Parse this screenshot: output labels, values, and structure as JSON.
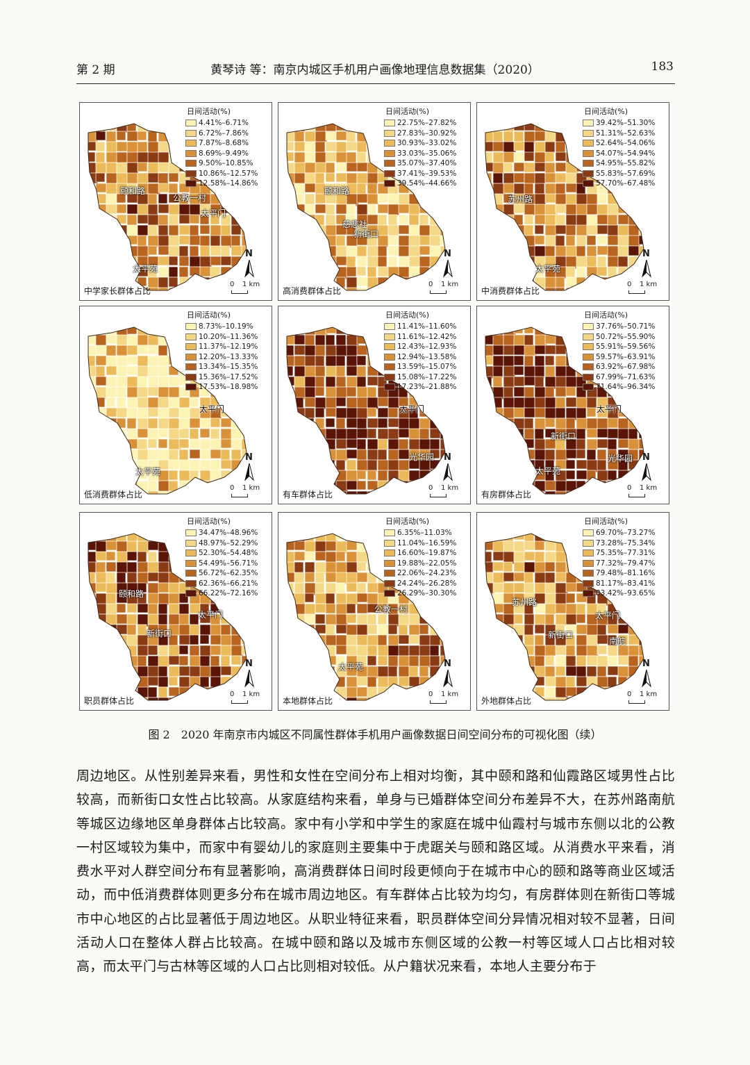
{
  "header": {
    "issue": "第 2 期",
    "title": "黄琴诗 等：南京内城区手机用户画像地理信息数据集（2020）",
    "page_number": "183"
  },
  "legend_title": "日间活动(%)",
  "scale_bar": {
    "zero": "0",
    "km": "1 km"
  },
  "north_label": "N",
  "palette": [
    "#fdf3b4",
    "#f4d885",
    "#ebbb5a",
    "#d99237",
    "#b8641f",
    "#8a3b13",
    "#5b1507"
  ],
  "panels": [
    {
      "caption": "中学家长群体占比",
      "legend": [
        "4.41%–6.71%",
        "6.72%–7.86%",
        "7.87%–8.68%",
        "8.69%–9.49%",
        "9.50%–10.85%",
        "10.86%–12.57%",
        "12.58%–14.86%"
      ],
      "places": [
        "颐和路",
        "公教一村",
        "太平门",
        "太平苑"
      ]
    },
    {
      "caption": "高消费群体占比",
      "legend": [
        "22.75%–27.82%",
        "27.83%–30.92%",
        "30.93%–33.02%",
        "33.03%–35.06%",
        "35.07%–37.40%",
        "37.41%–39.53%",
        "39.54%–44.66%"
      ],
      "places": [
        "颐和路",
        "慈悲社",
        "新街口"
      ]
    },
    {
      "caption": "中消费群体占比",
      "legend": [
        "39.42%–51.30%",
        "51.31%–52.63%",
        "52.64%–54.06%",
        "54.07%–54.94%",
        "54.95%–55.82%",
        "55.83%–57.69%",
        "57.70%–67.48%"
      ],
      "places": [
        "苏州路",
        "太平苑"
      ]
    },
    {
      "caption": "低消费群体占比",
      "legend": [
        "8.73%–10.19%",
        "10.20%–11.36%",
        "11.37%–12.19%",
        "12.20%–13.33%",
        "13.34%–15.35%",
        "15.36%–17.52%",
        "17.53%–18.98%"
      ],
      "places": [
        "太平门",
        "太平苑"
      ]
    },
    {
      "caption": "有车群体占比",
      "legend": [
        "11.41%–11.60%",
        "11.61%–12.42%",
        "12.43%–12.93%",
        "12.94%–13.58%",
        "13.59%–15.07%",
        "15.08%–17.22%",
        "17.23%–21.88%"
      ],
      "places": [
        "太平门",
        "光华园"
      ]
    },
    {
      "caption": "有房群体占比",
      "legend": [
        "37.76%–50.71%",
        "50.72%–55.90%",
        "55.91%–59.56%",
        "59.57%–63.91%",
        "63.92%–67.98%",
        "67.99%–71.63%",
        "71.64%–96.34%"
      ],
      "places": [
        "太平门",
        "新街口",
        "光华园",
        "太平苑"
      ]
    },
    {
      "caption": "职员群体占比",
      "legend": [
        "34.47%–48.96%",
        "48.97%–52.29%",
        "52.30%–54.48%",
        "54.49%–56.71%",
        "56.72%–62.35%",
        "62.36%–66.21%",
        "66.22%–72.16%"
      ],
      "places": [
        "颐和路",
        "太平门",
        "新街口"
      ]
    },
    {
      "caption": "本地群体占比",
      "legend": [
        "6.35%–11.03%",
        "11.04%–16.59%",
        "16.60%–19.87%",
        "19.88%–22.05%",
        "22.06%–24.23%",
        "24.24%–26.28%",
        "26.29%–30.30%"
      ],
      "places": [
        "公教一村",
        "太平苑"
      ]
    },
    {
      "caption": "外地群体占比",
      "legend": [
        "69.70%–73.27%",
        "73.28%–75.34%",
        "75.35%–77.31%",
        "77.32%–79.47%",
        "79.48%–81.16%",
        "81.17%–83.41%",
        "83.42%–93.65%"
      ],
      "places": [
        "苏州路",
        "太平门",
        "新街口",
        "南航"
      ]
    }
  ],
  "figure_caption": "图 2　2020 年南京市内城区不同属性群体手机用户画像数据日间空间分布的可视化图（续）",
  "body_paragraph": "周边地区。从性别差异来看，男性和女性在空间分布上相对均衡，其中颐和路和仙霞路区域男性占比较高，而新街口女性占比较高。从家庭结构来看，单身与已婚群体空间分布差异不大，在苏州路南航等城区边缘地区单身群体占比较高。家中有小学和中学生的家庭在城中仙霞村与城市东侧以北的公教一村区域较为集中，而家中有婴幼儿的家庭则主要集中于虎踞关与颐和路区域。从消费水平来看，消费水平对人群空间分布有显著影响，高消费群体日间时段更倾向于在城市中心的颐和路等商业区域活动，而中低消费群体则更多分布在城市周边地区。有车群体占比较为均匀，有房群体则在新街口等城市中心地区的占比显著低于周边地区。从职业特征来看，职员群体空间分异情况相对较不显著，日间活动人口在整体人群占比较高。在城中颐和路以及城市东侧区域的公教一村等区域人口占比相对较高，而太平门与古林等区域的人口占比则相对较低。从户籍状况来看，本地人主要分布于"
}
